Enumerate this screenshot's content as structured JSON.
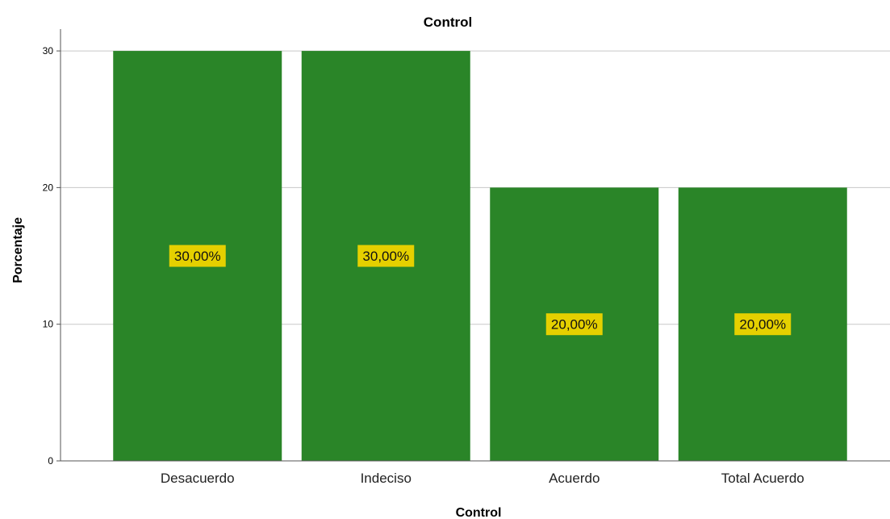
{
  "chart_data": {
    "type": "bar",
    "title": "Control",
    "xlabel": "Control",
    "ylabel": "Porcentaje",
    "categories": [
      "Desacuerdo",
      "Indeciso",
      "Acuerdo",
      "Total Acuerdo"
    ],
    "values": [
      30,
      30,
      20,
      20
    ],
    "data_labels": [
      "30,00%",
      "30,00%",
      "20,00%",
      "20,00%"
    ],
    "ylim": [
      0,
      31.6
    ],
    "yticks": [
      0,
      10,
      20,
      30
    ],
    "ytick_labels": [
      "0",
      "10",
      "20",
      "30"
    ],
    "grid": true,
    "colors": {
      "bar": "#2a8528",
      "data_label_bg": "#e5d000",
      "gridline": "#c8c8c8",
      "axis": "#555555"
    }
  }
}
